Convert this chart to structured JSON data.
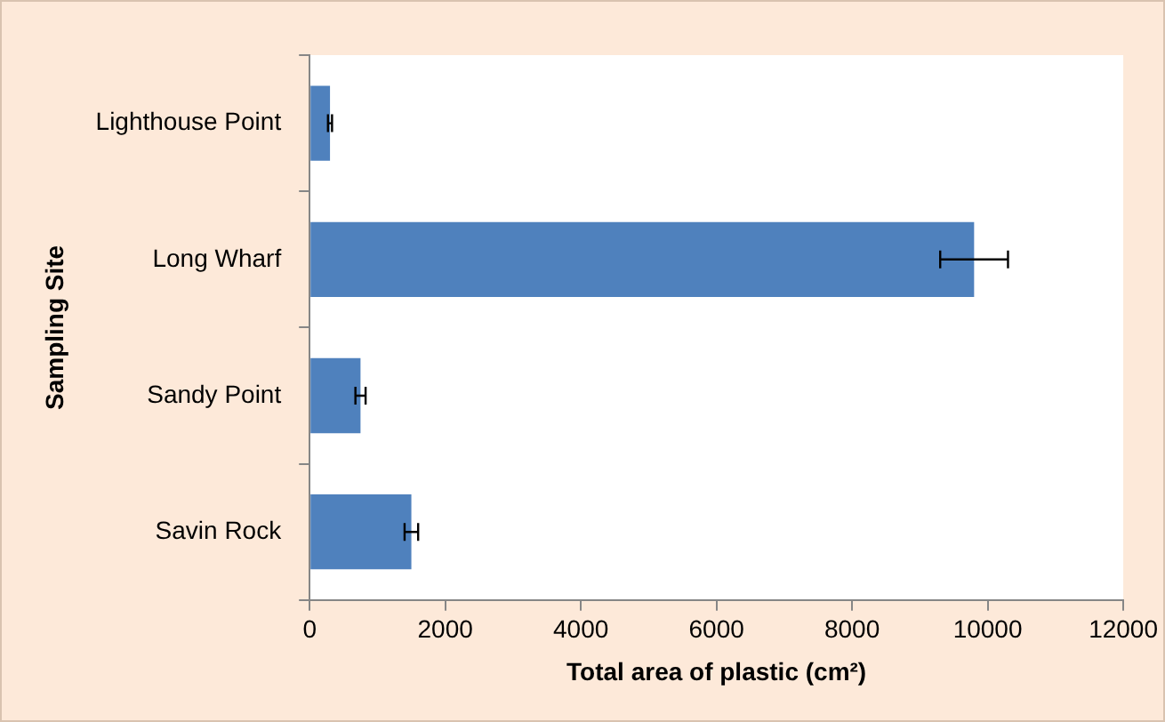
{
  "chart_data": {
    "type": "bar",
    "orientation": "horizontal",
    "categories": [
      "Lighthouse Point",
      "Long Wharf",
      "Sandy Point",
      "Savin Rock"
    ],
    "values": [
      300,
      9800,
      750,
      1500
    ],
    "errors": [
      30,
      500,
      75,
      100
    ],
    "color": "#4f81bd",
    "xlabel": "Total area of plastic (cm²)",
    "ylabel": "Sampling Site",
    "xlim": [
      0,
      12000
    ],
    "xticks": [
      0,
      2000,
      4000,
      6000,
      8000,
      10000,
      12000
    ],
    "grid": false,
    "legend": false
  }
}
